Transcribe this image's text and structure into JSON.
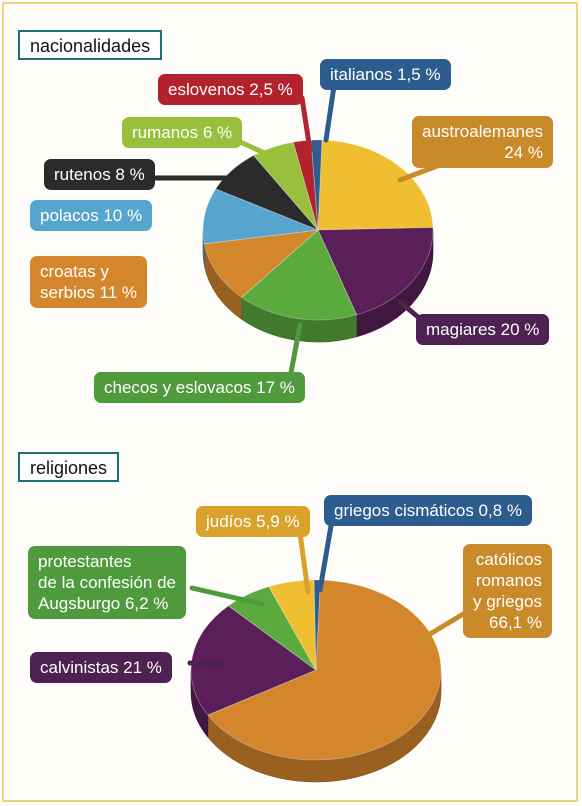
{
  "colors": {
    "yellow": "#efbe31",
    "purple": "#5a1e58",
    "green": "#5aaa3e",
    "orange": "#d4862c",
    "blue": "#57a5cf",
    "black": "#2b2b2b",
    "lightgreen": "#98c03d",
    "red": "#b2232e",
    "darkblue": "#2d5d8e",
    "gold": "#c98a28",
    "olive": "#5aaa3e",
    "label_violet": "#4d2150",
    "label_orange": "#c98a2a",
    "label_green": "#4f9a3c",
    "label_blue": "#4fa0cf",
    "label_darkgreen": "#4f9a3c",
    "label_yellow": "#d9a22c"
  },
  "chart_data": [
    {
      "type": "pie",
      "title": "nacionalidades",
      "slices": [
        {
          "label": "austroalemanes 24 %",
          "value": 24,
          "color": "#efbe31"
        },
        {
          "label": "magiares 20 %",
          "value": 20,
          "color": "#5a1e58"
        },
        {
          "label": "checos y eslovacos 17 %",
          "value": 17,
          "color": "#5aaa3e"
        },
        {
          "label": "croatas y serbios 11 %",
          "value": 11,
          "color": "#d4862c"
        },
        {
          "label": "polacos 10 %",
          "value": 10,
          "color": "#57a5cf"
        },
        {
          "label": "rutenos 8 %",
          "value": 8,
          "color": "#2b2b2b"
        },
        {
          "label": "rumanos 6 %",
          "value": 6,
          "color": "#98c03d"
        },
        {
          "label": "eslovenos 2,5 %",
          "value": 2.5,
          "color": "#b2232e"
        },
        {
          "label": "italianos 1,5 %",
          "value": 1.5,
          "color": "#2d5d8e"
        }
      ]
    },
    {
      "type": "pie",
      "title": "religiones",
      "slices": [
        {
          "label": "católicos romanos y griegos 66,1 %",
          "value": 66.1,
          "color": "#d4862c"
        },
        {
          "label": "calvinistas 21 %",
          "value": 21,
          "color": "#5a1e58"
        },
        {
          "label": "protestantes de la confesión de Augsburgo 6,2 %",
          "value": 6.2,
          "color": "#5aaa3e"
        },
        {
          "label": "judíos 5,9 %",
          "value": 5.9,
          "color": "#efbe31"
        },
        {
          "label": "griegos cismáticos 0,8 %",
          "value": 0.8,
          "color": "#2d5d8e"
        }
      ]
    }
  ],
  "labels": {
    "nac_title": "nacionalidades",
    "rel_title": "religiones",
    "italianos": "italianos 1,5 %",
    "eslovenos": "eslovenos 2,5 %",
    "rumanos": "rumanos 6 %",
    "rutenos": "rutenos 8 %",
    "polacos": "polacos 10 %",
    "croatas": "croatas y\nserbios 11 %",
    "austroalemanes": "austroalemanes\n24 %",
    "magiares": "magiares 20 %",
    "checos": "checos y eslovacos 17 %",
    "judios": "judíos 5,9 %",
    "griegos": "griegos cismáticos 0,8 %",
    "protestantes": "protestantes\nde la confesión de\nAugsburgo 6,2 %",
    "calvinistas": "calvinistas 21 %",
    "catolicos": "católicos\nromanos\ny griegos\n66,1 %"
  }
}
